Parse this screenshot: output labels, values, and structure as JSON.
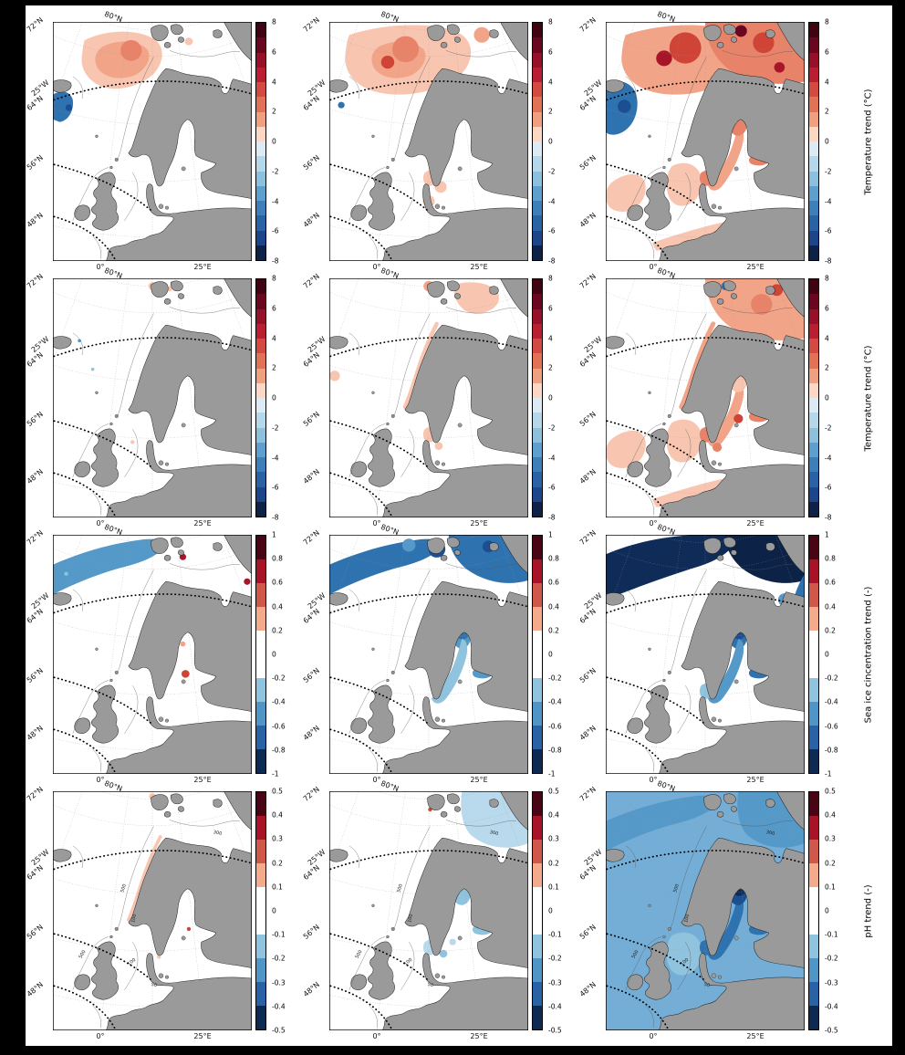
{
  "figure": {
    "background": "#000000",
    "canvas": "#ffffff",
    "land_color": "#9a9a9a",
    "coast_color": "#222222"
  },
  "axes": {
    "lat_labels": [
      "72°N",
      "25°W",
      "64°N",
      "56°N",
      "48°N"
    ],
    "top_label": "80°N",
    "lon_labels": [
      "0°",
      "25°E"
    ]
  },
  "palettes": {
    "temperature": [
      "#3f0312",
      "#6b0620",
      "#951028",
      "#b91f31",
      "#d34a42",
      "#e27256",
      "#efa081",
      "#fbd7c4",
      "#dceaf3",
      "#b5d7ea",
      "#8cc0dd",
      "#5da0cd",
      "#3d7fb9",
      "#2a62a6",
      "#1c4689",
      "#0d2246"
    ],
    "fraction": [
      "#4a0515",
      "#a81328",
      "#d0584a",
      "#f3ab8c",
      "#ffffff",
      "#ffffff",
      "#8fc3de",
      "#4f95c6",
      "#2a62a6",
      "#0d2a52"
    ]
  },
  "depth_labels": {
    "values": [
      "500",
      "100",
      "500",
      "100",
      "50",
      "300"
    ]
  },
  "rows": [
    {
      "id": "sst-trend",
      "label": "Temperature trend (°C)",
      "palette": "temperature",
      "ticks": [
        "8",
        "6",
        "4",
        "2",
        "0",
        "-2",
        "-4",
        "-6",
        "-8"
      ],
      "show_depth_labels": false,
      "panels": [
        {
          "overlays": [
            {
              "region": "norwegian_sea",
              "fill": "#f8c6b0"
            },
            {
              "region": "norwegian_core",
              "fill": "#f2a488"
            },
            {
              "circle": [
                118,
                44,
                16
              ],
              "fill": "#e8836a"
            },
            {
              "circle": [
                205,
                30,
                6
              ],
              "fill": "#f8c6b0"
            },
            {
              "region": "greenland_edge",
              "fill": "#2f72b0"
            },
            {
              "circle": [
                24,
                132,
                5
              ],
              "fill": "#1c4f92"
            }
          ]
        },
        {
          "overlays": [
            {
              "region": "norwegian_wide",
              "fill": "#f8c6b0"
            },
            {
              "region": "norwegian_core",
              "fill": "#f2a488"
            },
            {
              "circle": [
                115,
                42,
                20
              ],
              "fill": "#e8836a"
            },
            {
              "circle": [
                88,
                62,
                10
              ],
              "fill": "#cf4436"
            },
            {
              "circle": [
                230,
                20,
                12
              ],
              "fill": "#f2a488"
            },
            {
              "circle": [
                18,
                128,
                5
              ],
              "fill": "#2f72b0"
            },
            {
              "region": "kattegat",
              "fill": "#f8c6b0"
            },
            {
              "circle": [
                168,
                254,
                9
              ],
              "fill": "#f8c6b0"
            },
            {
              "circle": [
                150,
                276,
                9
              ],
              "fill": "#f8c6b0"
            }
          ]
        },
        {
          "overlays": [
            {
              "region": "norwegian_wide",
              "fill": "#f2a488"
            },
            {
              "region": "barents_wide",
              "fill": "#e8836a"
            },
            {
              "circle": [
                120,
                40,
                24
              ],
              "fill": "#cf4436"
            },
            {
              "circle": [
                88,
                56,
                12
              ],
              "fill": "#a81529"
            },
            {
              "circle": [
                238,
                32,
                16
              ],
              "fill": "#cf4436"
            },
            {
              "circle": [
                204,
                14,
                9
              ],
              "fill": "#6b0620"
            },
            {
              "circle": [
                262,
                70,
                8
              ],
              "fill": "#a81529"
            },
            {
              "region": "atl_blue",
              "fill": "#2f72b0"
            },
            {
              "circle": [
                28,
                130,
                10
              ],
              "fill": "#1c4f92"
            },
            {
              "region": "north_sea",
              "fill": "#f8c6b0"
            },
            {
              "region": "uk_west",
              "fill": "#f8c6b0"
            },
            {
              "region": "baltic",
              "fill": "#f2a488"
            },
            {
              "region": "bothnia",
              "fill": "#e8836a"
            },
            {
              "region": "gulf_finland",
              "fill": "#e8836a"
            },
            {
              "region": "kattegat",
              "fill": "#e8836a"
            },
            {
              "region": "coastal_europe",
              "fill": "#f8c6b0"
            }
          ]
        }
      ]
    },
    {
      "id": "temperature-trend-2",
      "label": "Temperature trend (°C)",
      "palette": "temperature",
      "ticks": [
        "8",
        "6",
        "4",
        "2",
        "0",
        "-2",
        "-4",
        "-6",
        "-8"
      ],
      "show_depth_labels": false,
      "panels": [
        {
          "overlays": [
            {
              "circle": [
                150,
                12,
                6
              ],
              "fill": "#f8c6b0"
            },
            {
              "circle": [
                176,
                16,
                4
              ],
              "fill": "#f8c6b0"
            },
            {
              "circle": [
                40,
                96,
                2.5
              ],
              "fill": "#5499c8"
            },
            {
              "circle": [
                60,
                140,
                2.5
              ],
              "fill": "#8fc3de"
            },
            {
              "circle": [
                120,
                252,
                3
              ],
              "fill": "#f8c6b0"
            }
          ]
        },
        {
          "overlays": [
            {
              "region": "barents_patch",
              "fill": "#f8c6b0"
            },
            {
              "circle": [
                150,
                12,
                8
              ],
              "fill": "#f2a488"
            },
            {
              "circle": [
                185,
                14,
                5
              ],
              "fill": "#2f72b0"
            },
            {
              "circle": [
                8,
                150,
                8
              ],
              "fill": "#f8c6b0"
            },
            {
              "stroke": "norway_coast",
              "color": "#f8c6b0",
              "width": 6
            },
            {
              "region": "kattegat",
              "fill": "#f8c6b0"
            },
            {
              "circle": [
                165,
                258,
                6
              ],
              "fill": "#f8c6b0"
            }
          ]
        },
        {
          "overlays": [
            {
              "region": "barents_wide",
              "fill": "#f2a488"
            },
            {
              "circle": [
                235,
                40,
                16
              ],
              "fill": "#e8836a"
            },
            {
              "circle": [
                258,
                18,
                9
              ],
              "fill": "#cf4436"
            },
            {
              "circle": [
                180,
                12,
                6
              ],
              "fill": "#2f72b0"
            },
            {
              "stroke": "norway_coast",
              "color": "#f2a488",
              "width": 7
            },
            {
              "region": "north_sea",
              "fill": "#f8c6b0"
            },
            {
              "region": "kattegat",
              "fill": "#e8836a"
            },
            {
              "region": "baltic",
              "fill": "#f2a488"
            },
            {
              "region": "bothnia",
              "fill": "#f8c6b0"
            },
            {
              "circle": [
                200,
                216,
                7
              ],
              "fill": "#cf4436"
            },
            {
              "circle": [
                168,
                260,
                7
              ],
              "fill": "#e8836a"
            },
            {
              "region": "gulf_finland",
              "fill": "#e8836a"
            },
            {
              "region": "coastal_europe",
              "fill": "#f8c6b0"
            },
            {
              "region": "uk_west",
              "fill": "#f8c6b0"
            }
          ]
        }
      ]
    },
    {
      "id": "sea-ice-concentration-trend",
      "label": "Sea ice cincentration trend (-)",
      "palette": "fraction",
      "ticks": [
        "1",
        "0.8",
        "0.6",
        "0.4",
        "0.2",
        "0",
        "-0.2",
        "-0.4",
        "-0.6",
        "-0.8",
        "-1"
      ],
      "show_depth_labels": false,
      "panels": [
        {
          "overlays": [
            {
              "region": "fram_band",
              "fill": "#5499c8"
            },
            {
              "circle": [
                196,
                34,
                5
              ],
              "fill": "#a81529"
            },
            {
              "circle": [
                293,
                72,
                5
              ],
              "fill": "#a81529"
            },
            {
              "circle": [
                200,
                214,
                6
              ],
              "fill": "#cf4436"
            },
            {
              "circle": [
                196,
                168,
                4
              ],
              "fill": "#f2a488"
            },
            {
              "circle": [
                20,
                60,
                3
              ],
              "fill": "#8fc3de"
            }
          ]
        },
        {
          "overlays": [
            {
              "region": "fram_band",
              "fill": "#2f72b0"
            },
            {
              "region": "barents_ice",
              "fill": "#2f72b0"
            },
            {
              "circle": [
                162,
                22,
                13
              ],
              "fill": "#1c4f92"
            },
            {
              "circle": [
                240,
                18,
                9
              ],
              "fill": "#1c4f92"
            },
            {
              "circle": [
                120,
                16,
                10
              ],
              "fill": "#5499c8"
            },
            {
              "region": "bothnia",
              "fill": "#5499c8"
            },
            {
              "region": "bothnia_bay",
              "fill": "#2f72b0"
            },
            {
              "region": "baltic",
              "fill": "#8fc3de"
            },
            {
              "region": "gulf_finland",
              "fill": "#5499c8"
            }
          ]
        },
        {
          "overlays": [
            {
              "region": "fram_band_wide",
              "fill": "#0f2c58"
            },
            {
              "region": "barents_ice",
              "fill": "#0c2246"
            },
            {
              "region": "right_band",
              "fill": "#2f72b0"
            },
            {
              "circle": [
                270,
                100,
                10
              ],
              "fill": "#5499c8"
            },
            {
              "region": "bothnia",
              "fill": "#2f72b0"
            },
            {
              "region": "bothnia_bay",
              "fill": "#1c4f92"
            },
            {
              "region": "baltic",
              "fill": "#5499c8"
            },
            {
              "region": "gulf_finland",
              "fill": "#2f72b0"
            },
            {
              "region": "kattegat",
              "fill": "#8fc3de"
            }
          ]
        }
      ]
    },
    {
      "id": "ph-trend",
      "label": "pH trend (-)",
      "palette": "fraction",
      "ticks": [
        "0.5",
        "0.4",
        "0.3",
        "0.2",
        "0.1",
        "0",
        "-0.1",
        "-0.2",
        "-0.3",
        "-0.4",
        "-0.5"
      ],
      "show_depth_labels": true,
      "panels": [
        {
          "overlays": [
            {
              "stroke": "norway_coast",
              "color": "#f8c6b0",
              "width": 5
            },
            {
              "circle": [
                150,
                8,
                5
              ],
              "fill": "#f8c6b0"
            },
            {
              "circle": [
                205,
                212,
                3
              ],
              "fill": "#cf4436"
            },
            {
              "circle": [
                160,
                255,
                3
              ],
              "fill": "#f8c6b0"
            }
          ]
        },
        {
          "overlays": [
            {
              "region": "barents_ph",
              "fill": "#b9d9ec"
            },
            {
              "circle": [
                152,
                28,
                3
              ],
              "fill": "#cf4436"
            },
            {
              "region": "bothnia",
              "fill": "#8fc3de"
            },
            {
              "region": "gulf_finland",
              "fill": "#8fc3de"
            },
            {
              "region": "kattegat",
              "fill": "#b9d9ec"
            },
            {
              "circle": [
                172,
                250,
                6
              ],
              "fill": "#8fc3de"
            },
            {
              "circle": [
                186,
                232,
                5
              ],
              "fill": "#b9d9ec"
            }
          ]
        },
        {
          "overlays": [
            {
              "region": "full_ocean",
              "fill": "#74aed6"
            },
            {
              "region": "fram_band",
              "fill": "#5499c8"
            },
            {
              "region": "barents_ph",
              "fill": "#5499c8"
            },
            {
              "region": "north_sea",
              "fill": "#8fc3de"
            },
            {
              "region": "baltic",
              "fill": "#2f72b0"
            },
            {
              "region": "bothnia",
              "fill": "#1c4f92"
            },
            {
              "region": "bothnia_bay",
              "fill": "#0f2c58"
            },
            {
              "region": "gulf_finland",
              "fill": "#2f72b0"
            },
            {
              "region": "kattegat",
              "fill": "#2f72b0"
            }
          ]
        }
      ]
    }
  ]
}
